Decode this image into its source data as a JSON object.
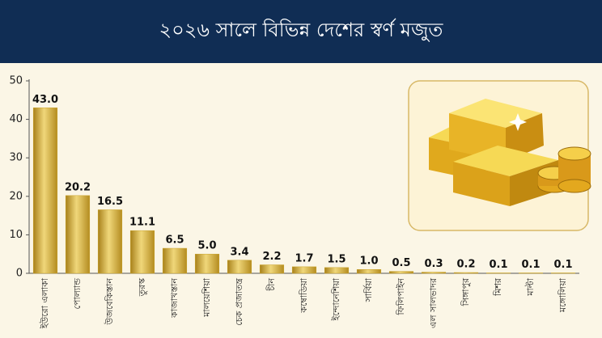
{
  "chart_data": {
    "type": "bar",
    "title": "২০২৬ সালে বিভিন্ন দেশের স্বর্ণ মজুত",
    "categories": [
      "ইউরো এলাকা",
      "পোল্যান্ড",
      "উজবেকিস্তান",
      "তুরস্ক",
      "কাজাখস্তান",
      "মালয়েশিয়া",
      "চেক প্রজাতন্ত্র",
      "চীন",
      "কম্বোডিয়া",
      "ইন্দোনেশিয়া",
      "সার্বিয়া",
      "ফিলিপাইন",
      "এল সালভাদর",
      "সিঙ্গাপুর",
      "মিশর",
      "মাল্টা",
      "মঙ্গোলিয়া"
    ],
    "values": [
      43.0,
      20.2,
      16.5,
      11.1,
      6.5,
      5.0,
      3.4,
      2.2,
      1.7,
      1.5,
      1.0,
      0.5,
      0.3,
      0.2,
      0.1,
      0.1,
      0.1
    ],
    "value_labels": [
      "43.0",
      "20.2",
      "16.5",
      "11.1",
      "6.5",
      "5.0",
      "3.4",
      "2.2",
      "1.7",
      "1.5",
      "1.0",
      "0.5",
      "0.3",
      "0.2",
      "0.1",
      "0.1",
      "0.1"
    ],
    "color": "#c9a227",
    "ylim": [
      0,
      50
    ],
    "yticks": [
      0,
      10,
      20,
      30,
      40,
      50
    ],
    "grid": false
  }
}
